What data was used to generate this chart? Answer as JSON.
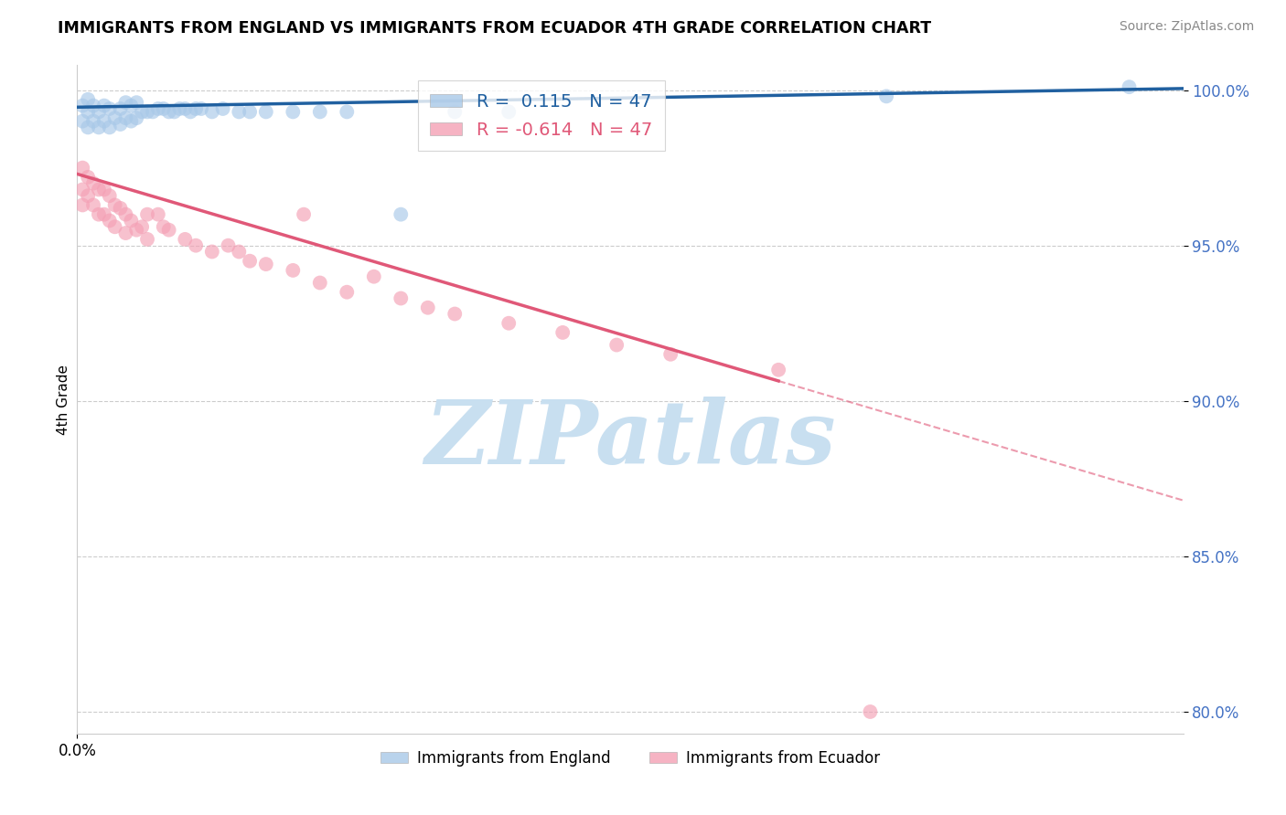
{
  "title": "IMMIGRANTS FROM ENGLAND VS IMMIGRANTS FROM ECUADOR 4TH GRADE CORRELATION CHART",
  "source": "Source: ZipAtlas.com",
  "ylabel_label": "4th Grade",
  "xlim": [
    0.0,
    0.205
  ],
  "ylim": [
    0.793,
    1.008
  ],
  "yticks": [
    0.8,
    0.85,
    0.9,
    0.95,
    1.0
  ],
  "ytick_labels": [
    "80.0%",
    "85.0%",
    "90.0%",
    "95.0%",
    "100.0%"
  ],
  "R_england": 0.115,
  "N_england": 47,
  "R_ecuador": -0.614,
  "N_ecuador": 47,
  "england_color": "#a8c8e8",
  "ecuador_color": "#f4a0b5",
  "england_line_color": "#2060a0",
  "ecuador_line_color": "#e05878",
  "watermark": "ZIPatlas",
  "watermark_color": "#c8dff0",
  "legend_label_eng": "Immigrants from England",
  "legend_label_ecu": "Immigrants from Ecuador",
  "eng_line_y0": 0.9945,
  "eng_line_y1": 1.0005,
  "ecu_line_y0": 0.973,
  "ecu_line_y1": 0.868,
  "ecu_line_solid_end_x": 0.13,
  "england_x": [
    0.001,
    0.001,
    0.002,
    0.002,
    0.002,
    0.003,
    0.003,
    0.004,
    0.004,
    0.005,
    0.005,
    0.006,
    0.006,
    0.007,
    0.008,
    0.008,
    0.009,
    0.009,
    0.01,
    0.01,
    0.011,
    0.011,
    0.012,
    0.013,
    0.014,
    0.015,
    0.016,
    0.017,
    0.018,
    0.019,
    0.02,
    0.021,
    0.022,
    0.023,
    0.025,
    0.027,
    0.03,
    0.032,
    0.035,
    0.04,
    0.045,
    0.05,
    0.06,
    0.07,
    0.08,
    0.15,
    0.195
  ],
  "england_y": [
    0.99,
    0.995,
    0.988,
    0.993,
    0.997,
    0.99,
    0.995,
    0.988,
    0.993,
    0.99,
    0.995,
    0.988,
    0.994,
    0.991,
    0.989,
    0.994,
    0.991,
    0.996,
    0.99,
    0.995,
    0.991,
    0.996,
    0.993,
    0.993,
    0.993,
    0.994,
    0.994,
    0.993,
    0.993,
    0.994,
    0.994,
    0.993,
    0.994,
    0.994,
    0.993,
    0.994,
    0.993,
    0.993,
    0.993,
    0.993,
    0.993,
    0.993,
    0.96,
    0.993,
    0.993,
    0.998,
    1.001
  ],
  "ecuador_x": [
    0.001,
    0.001,
    0.001,
    0.002,
    0.002,
    0.003,
    0.003,
    0.004,
    0.004,
    0.005,
    0.005,
    0.006,
    0.006,
    0.007,
    0.007,
    0.008,
    0.009,
    0.009,
    0.01,
    0.011,
    0.012,
    0.013,
    0.013,
    0.015,
    0.016,
    0.017,
    0.02,
    0.022,
    0.025,
    0.028,
    0.03,
    0.032,
    0.035,
    0.04,
    0.042,
    0.045,
    0.05,
    0.055,
    0.06,
    0.065,
    0.07,
    0.08,
    0.09,
    0.1,
    0.11,
    0.13,
    0.147
  ],
  "ecuador_y": [
    0.975,
    0.968,
    0.963,
    0.972,
    0.966,
    0.97,
    0.963,
    0.968,
    0.96,
    0.968,
    0.96,
    0.966,
    0.958,
    0.963,
    0.956,
    0.962,
    0.96,
    0.954,
    0.958,
    0.955,
    0.956,
    0.952,
    0.96,
    0.96,
    0.956,
    0.955,
    0.952,
    0.95,
    0.948,
    0.95,
    0.948,
    0.945,
    0.944,
    0.942,
    0.96,
    0.938,
    0.935,
    0.94,
    0.933,
    0.93,
    0.928,
    0.925,
    0.922,
    0.918,
    0.915,
    0.91,
    0.8
  ]
}
